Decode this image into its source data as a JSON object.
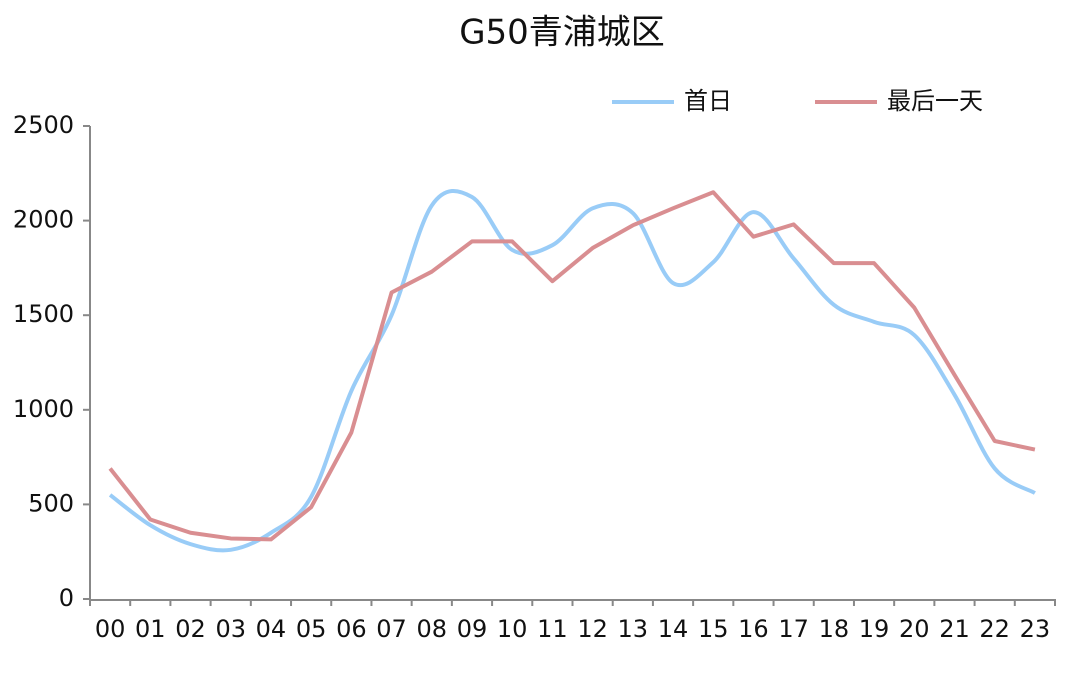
{
  "chart_data": {
    "type": "line",
    "title": "G50青浦城区",
    "categories": [
      "00",
      "01",
      "02",
      "03",
      "04",
      "05",
      "06",
      "07",
      "08",
      "09",
      "10",
      "11",
      "12",
      "13",
      "14",
      "15",
      "16",
      "17",
      "18",
      "19",
      "20",
      "21",
      "22",
      "23"
    ],
    "series": [
      {
        "name": "首日",
        "color": "#99ccf7",
        "smooth": true,
        "values": [
          550,
          390,
          290,
          260,
          350,
          540,
          1100,
          1500,
          2080,
          2125,
          1845,
          1870,
          2065,
          2040,
          1670,
          1780,
          2045,
          1800,
          1555,
          1465,
          1395,
          1080,
          690,
          560
        ]
      },
      {
        "name": "最后一天",
        "color": "#d98e91",
        "smooth": false,
        "values": [
          690,
          420,
          350,
          320,
          315,
          485,
          880,
          1620,
          1730,
          1890,
          1890,
          1680,
          1855,
          1975,
          2065,
          2150,
          1915,
          1980,
          1775,
          1775,
          1540,
          1185,
          835,
          790
        ]
      }
    ],
    "ylim": [
      0,
      2500
    ],
    "yticks": [
      0,
      500,
      1000,
      1500,
      2000,
      2500
    ],
    "legend": "top-right"
  }
}
